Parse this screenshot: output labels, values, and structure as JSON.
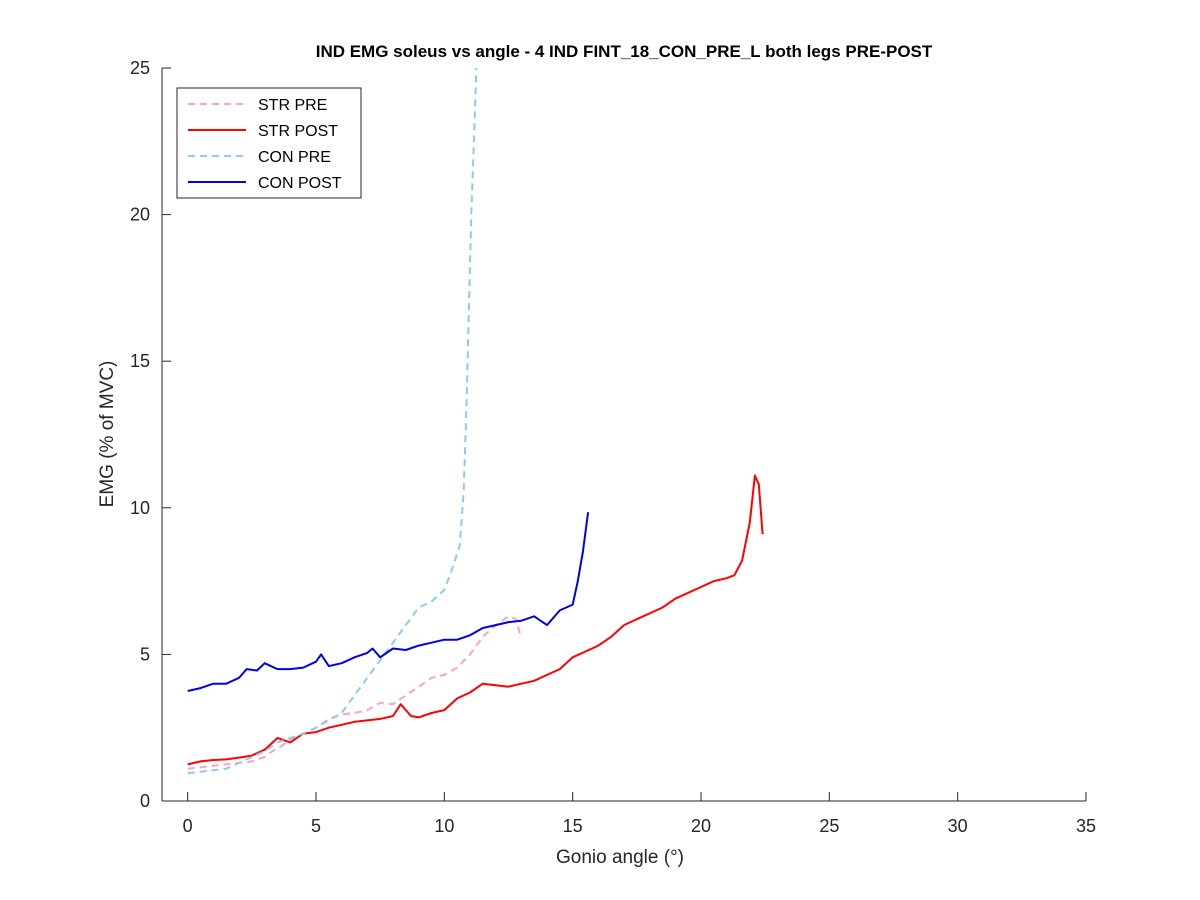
{
  "chart_data": {
    "type": "line",
    "title": "IND EMG soleus vs angle - 4 IND FINT_18_CON_PRE_L both legs PRE-POST",
    "xlabel": "Gonio angle (°)",
    "ylabel": "EMG (% of MVC)",
    "xlim": [
      -1,
      35
    ],
    "ylim": [
      0,
      25
    ],
    "xticks": [
      0,
      5,
      10,
      15,
      20,
      25,
      30,
      35
    ],
    "yticks": [
      0,
      5,
      10,
      15,
      20,
      25
    ],
    "xtick_labels": [
      "0",
      "5",
      "10",
      "15",
      "20",
      "25",
      "30",
      "35"
    ],
    "ytick_labels": [
      "0",
      "5",
      "10",
      "15",
      "20",
      "25"
    ],
    "grid": false,
    "legend_position": "top-left",
    "series": [
      {
        "name": "STR PRE",
        "color": "#F4A4C9",
        "dash": "dashed",
        "points": [
          [
            0,
            1.1
          ],
          [
            0.5,
            1.15
          ],
          [
            1,
            1.2
          ],
          [
            1.5,
            1.25
          ],
          [
            2,
            1.3
          ],
          [
            2.5,
            1.35
          ],
          [
            3,
            1.5
          ],
          [
            3.3,
            1.7
          ],
          [
            3.7,
            1.9
          ],
          [
            4,
            2.1
          ],
          [
            4.5,
            2.3
          ],
          [
            5,
            2.5
          ],
          [
            5.5,
            2.8
          ],
          [
            6,
            2.95
          ],
          [
            6.5,
            3.0
          ],
          [
            7,
            3.1
          ],
          [
            7.5,
            3.35
          ],
          [
            8,
            3.3
          ],
          [
            8.5,
            3.6
          ],
          [
            9,
            3.9
          ],
          [
            9.5,
            4.2
          ],
          [
            10,
            4.3
          ],
          [
            10.5,
            4.55
          ],
          [
            11,
            5.0
          ],
          [
            11.5,
            5.6
          ],
          [
            12,
            6.0
          ],
          [
            12.5,
            6.3
          ],
          [
            12.8,
            6.2
          ],
          [
            12.95,
            5.7
          ]
        ]
      },
      {
        "name": "STR POST",
        "color": "#FF0000",
        "dash": "solid",
        "points": [
          [
            0,
            1.25
          ],
          [
            0.5,
            1.35
          ],
          [
            1,
            1.4
          ],
          [
            1.5,
            1.42
          ],
          [
            2,
            1.48
          ],
          [
            2.5,
            1.55
          ],
          [
            3,
            1.75
          ],
          [
            3.5,
            2.15
          ],
          [
            4,
            2.0
          ],
          [
            4.5,
            2.3
          ],
          [
            5,
            2.35
          ],
          [
            5.5,
            2.5
          ],
          [
            6,
            2.6
          ],
          [
            6.5,
            2.7
          ],
          [
            7,
            2.75
          ],
          [
            7.5,
            2.8
          ],
          [
            8,
            2.9
          ],
          [
            8.3,
            3.3
          ],
          [
            8.7,
            2.9
          ],
          [
            9,
            2.85
          ],
          [
            9.5,
            3.0
          ],
          [
            10,
            3.1
          ],
          [
            10.5,
            3.5
          ],
          [
            11,
            3.7
          ],
          [
            11.5,
            4.0
          ],
          [
            12,
            3.95
          ],
          [
            12.5,
            3.9
          ],
          [
            13,
            4.0
          ],
          [
            13.5,
            4.1
          ],
          [
            14,
            4.3
          ],
          [
            14.5,
            4.5
          ],
          [
            15,
            4.9
          ],
          [
            15.5,
            5.1
          ],
          [
            16,
            5.3
          ],
          [
            16.5,
            5.6
          ],
          [
            17,
            6.0
          ],
          [
            17.5,
            6.2
          ],
          [
            18,
            6.4
          ],
          [
            18.5,
            6.6
          ],
          [
            19,
            6.9
          ],
          [
            19.5,
            7.1
          ],
          [
            20,
            7.3
          ],
          [
            20.5,
            7.5
          ],
          [
            21,
            7.6
          ],
          [
            21.3,
            7.7
          ],
          [
            21.6,
            8.2
          ],
          [
            21.9,
            9.5
          ],
          [
            22.1,
            11.1
          ],
          [
            22.25,
            10.8
          ],
          [
            22.4,
            9.1
          ]
        ]
      },
      {
        "name": "CON PRE",
        "color": "#8EC9F0",
        "dash": "dashed",
        "points": [
          [
            0,
            0.95
          ],
          [
            0.5,
            1.0
          ],
          [
            1,
            1.05
          ],
          [
            1.5,
            1.1
          ],
          [
            2,
            1.3
          ],
          [
            2.5,
            1.5
          ],
          [
            3,
            1.7
          ],
          [
            3.5,
            2.0
          ],
          [
            4,
            2.15
          ],
          [
            4.5,
            2.3
          ],
          [
            5,
            2.5
          ],
          [
            5.5,
            2.75
          ],
          [
            6,
            3.0
          ],
          [
            6.5,
            3.6
          ],
          [
            7,
            4.2
          ],
          [
            7.5,
            4.8
          ],
          [
            8,
            5.4
          ],
          [
            8.5,
            6.0
          ],
          [
            9,
            6.6
          ],
          [
            9.5,
            6.8
          ],
          [
            10,
            7.2
          ],
          [
            10.3,
            7.9
          ],
          [
            10.6,
            8.7
          ],
          [
            10.75,
            10.5
          ],
          [
            10.85,
            13.0
          ],
          [
            10.95,
            16.5
          ],
          [
            11.05,
            20.0
          ],
          [
            11.15,
            22.5
          ],
          [
            11.25,
            25.0
          ]
        ]
      },
      {
        "name": "CON POST",
        "color": "#0000E6",
        "dash": "solid",
        "points": [
          [
            0,
            3.75
          ],
          [
            0.5,
            3.85
          ],
          [
            1,
            4.0
          ],
          [
            1.5,
            4.0
          ],
          [
            2,
            4.2
          ],
          [
            2.3,
            4.5
          ],
          [
            2.7,
            4.45
          ],
          [
            3,
            4.7
          ],
          [
            3.5,
            4.5
          ],
          [
            4,
            4.5
          ],
          [
            4.5,
            4.55
          ],
          [
            5,
            4.75
          ],
          [
            5.2,
            5.0
          ],
          [
            5.5,
            4.6
          ],
          [
            6,
            4.7
          ],
          [
            6.5,
            4.9
          ],
          [
            7,
            5.05
          ],
          [
            7.2,
            5.2
          ],
          [
            7.5,
            4.9
          ],
          [
            8,
            5.2
          ],
          [
            8.5,
            5.15
          ],
          [
            9,
            5.3
          ],
          [
            9.5,
            5.4
          ],
          [
            10,
            5.5
          ],
          [
            10.5,
            5.5
          ],
          [
            11,
            5.65
          ],
          [
            11.5,
            5.9
          ],
          [
            12,
            6.0
          ],
          [
            12.5,
            6.1
          ],
          [
            13,
            6.15
          ],
          [
            13.5,
            6.3
          ],
          [
            14,
            6.0
          ],
          [
            14.5,
            6.5
          ],
          [
            15,
            6.7
          ],
          [
            15.2,
            7.5
          ],
          [
            15.4,
            8.5
          ],
          [
            15.6,
            9.85
          ]
        ]
      }
    ]
  }
}
